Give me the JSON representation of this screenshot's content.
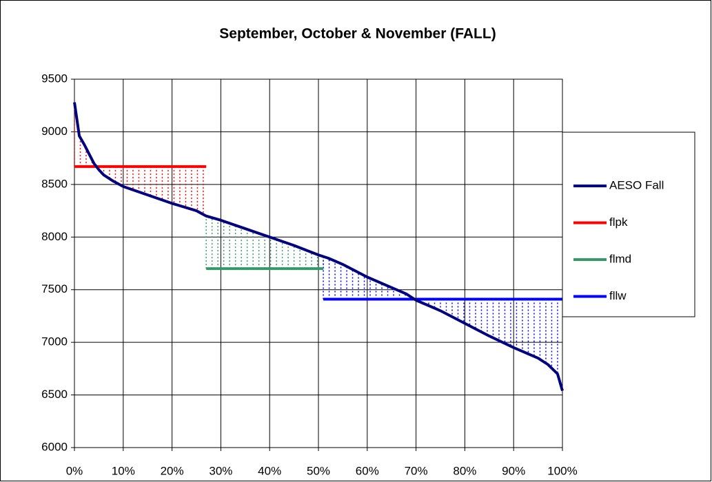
{
  "chart_data": {
    "type": "line",
    "title": "September, October & November (FALL)",
    "xlim": [
      0,
      100
    ],
    "xticks": [
      {
        "value": 0,
        "label": "0%"
      },
      {
        "value": 10,
        "label": "10%"
      },
      {
        "value": 20,
        "label": "20%"
      },
      {
        "value": 30,
        "label": "30%"
      },
      {
        "value": 40,
        "label": "40%"
      },
      {
        "value": 50,
        "label": "50%"
      },
      {
        "value": 60,
        "label": "60%"
      },
      {
        "value": 70,
        "label": "70%"
      },
      {
        "value": 80,
        "label": "80%"
      },
      {
        "value": 90,
        "label": "90%"
      },
      {
        "value": 100,
        "label": "100%"
      }
    ],
    "ylim": [
      6000,
      9500
    ],
    "yticks": [
      6000,
      6500,
      7000,
      7500,
      8000,
      8500,
      9000,
      9500
    ],
    "grid": true,
    "legend": "right",
    "series": [
      {
        "name": "AESO Fall",
        "color": "#000080",
        "x": [
          0,
          1,
          2,
          3,
          4,
          5,
          6,
          8,
          10,
          15,
          20,
          25,
          27,
          30,
          35,
          40,
          45,
          50,
          52,
          55,
          60,
          65,
          68,
          70,
          75,
          80,
          85,
          90,
          95,
          97,
          99,
          100
        ],
        "values": [
          9280,
          8960,
          8880,
          8790,
          8700,
          8640,
          8590,
          8530,
          8480,
          8400,
          8320,
          8250,
          8200,
          8160,
          8080,
          8000,
          7920,
          7830,
          7800,
          7740,
          7620,
          7520,
          7460,
          7400,
          7300,
          7180,
          7060,
          6950,
          6850,
          6790,
          6700,
          6540
        ]
      },
      {
        "name": "flpk",
        "color": "#ff0000",
        "x": [
          0,
          27
        ],
        "values": [
          8670,
          8670
        ]
      },
      {
        "name": "flmd",
        "color": "#339966",
        "x": [
          27,
          51
        ],
        "values": [
          7700,
          7700
        ]
      },
      {
        "name": "fllw",
        "color": "#0000ff",
        "x": [
          51,
          100
        ],
        "values": [
          7410,
          7410
        ]
      }
    ]
  }
}
